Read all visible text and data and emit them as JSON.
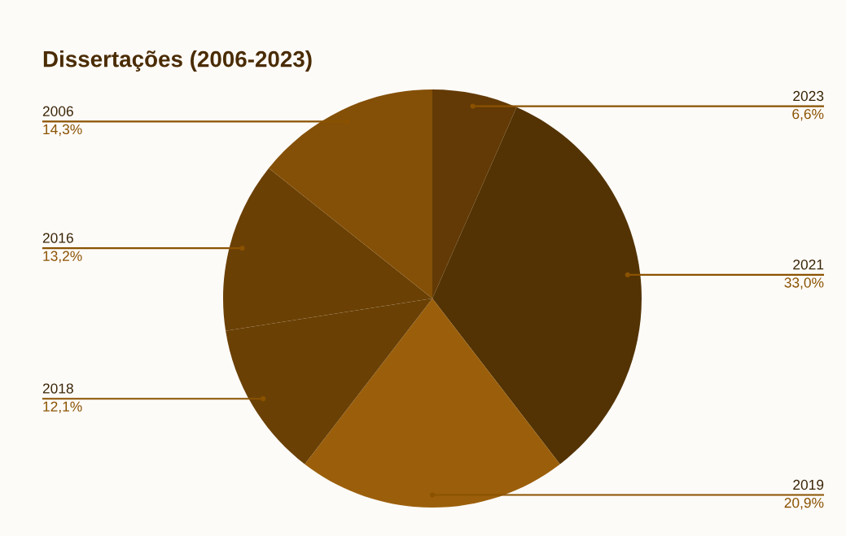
{
  "chart_data": {
    "type": "pie",
    "title": "Dissertações (2006-2023)",
    "categories": [
      "2023",
      "2021",
      "2019",
      "2018",
      "2016",
      "2006"
    ],
    "values": [
      6.6,
      33.0,
      20.9,
      12.1,
      13.2,
      14.3
    ],
    "value_labels": [
      "6,6%",
      "33,0%",
      "20,9%",
      "12,1%",
      "13,2%",
      "14,3%"
    ],
    "colors": [
      "#633a05",
      "#533303",
      "#9b5f0b",
      "#6a4005",
      "#6b4005",
      "#845007"
    ]
  }
}
